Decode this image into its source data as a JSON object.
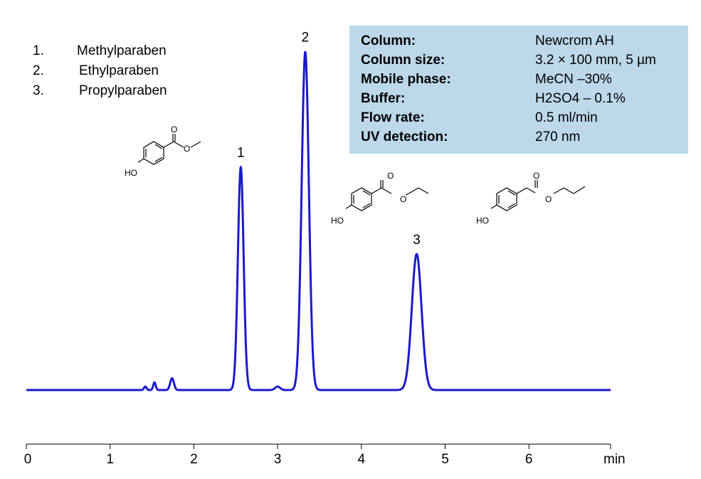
{
  "legend": [
    {
      "num": "1.",
      "name": "Methylparaben"
    },
    {
      "num": "2.",
      "name": "Ethylparaben"
    },
    {
      "num": "3.",
      "name": "Propylparaben"
    }
  ],
  "conditions": [
    {
      "label": "Column:",
      "value": "Newcrom AH"
    },
    {
      "label": "Column size:",
      "value": "3.2 × 100 mm, 5 µm"
    },
    {
      "label": "Mobile phase:",
      "value": "MeCN –30%"
    },
    {
      "label": "Buffer:",
      "value": "H2SO4 – 0.1%"
    },
    {
      "label": "Flow rate:",
      "value": "0.5 ml/min"
    },
    {
      "label": "UV detection:",
      "value": "270 nm"
    }
  ],
  "structures": [
    {
      "oh": "HO",
      "o_carbonyl": "O",
      "o_ester": "O"
    },
    {
      "oh": "HO",
      "o_carbonyl": "O",
      "o_ester": "O"
    },
    {
      "oh": "HO",
      "o_carbonyl": "O",
      "o_ester": "O"
    }
  ],
  "colors": {
    "trace": "#1a1acc",
    "axis": "#000000",
    "box": "#bcd8ea"
  },
  "chart_data": {
    "type": "line",
    "xlabel": "min",
    "xlim": [
      0,
      7
    ],
    "xticks": [
      0,
      1,
      2,
      3,
      4,
      5,
      6
    ],
    "xtick_labels": [
      "0",
      "1",
      "2",
      "3",
      "4",
      "5",
      "6"
    ],
    "ylim": [
      0,
      1
    ],
    "grid": false,
    "baseline": 0.0,
    "peaks": [
      {
        "label": "1",
        "rt": 2.56,
        "height": 0.64,
        "sigma": 0.034
      },
      {
        "label": "2",
        "rt": 3.33,
        "height": 0.97,
        "sigma": 0.043
      },
      {
        "label": "3",
        "rt": 4.66,
        "height": 0.39,
        "sigma": 0.058
      }
    ],
    "minor_peaks": [
      {
        "rt": 1.42,
        "height": 0.01,
        "sigma": 0.015
      },
      {
        "rt": 1.53,
        "height": 0.022,
        "sigma": 0.015
      },
      {
        "rt": 1.74,
        "height": 0.034,
        "sigma": 0.022
      },
      {
        "rt": 3.0,
        "height": 0.01,
        "sigma": 0.03
      }
    ]
  }
}
